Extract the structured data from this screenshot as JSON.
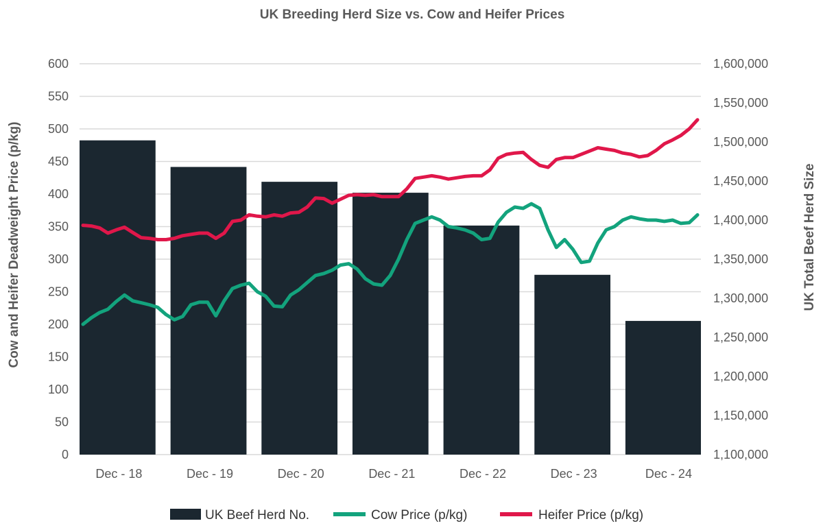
{
  "chart_data": {
    "type": "bar+line",
    "title": "UK Breeding Herd Size vs. Cow and Heifer Prices",
    "y_left_label": "Cow and Heifer Deadweight Price (p/kg)",
    "y_right_label": "UK Total Beef Herd Size",
    "y_left_range": [
      0,
      600
    ],
    "y_left_ticks": [
      "0",
      "50",
      "100",
      "150",
      "200",
      "250",
      "300",
      "350",
      "400",
      "450",
      "500",
      "550",
      "600"
    ],
    "y_right_range": [
      1100000,
      1600000
    ],
    "y_right_ticks": [
      "1,100,000",
      "1,150,000",
      "1,200,000",
      "1,250,000",
      "1,300,000",
      "1,350,000",
      "1,400,000",
      "1,450,000",
      "1,500,000",
      "1,550,000",
      "1,600,000"
    ],
    "x_labels": [
      "Dec - 18",
      "Dec - 19",
      "Dec - 20",
      "Dec - 21",
      "Dec - 22",
      "Dec - 23",
      "Dec - 24"
    ],
    "grid": true,
    "legend_position": "bottom",
    "bars": {
      "name": "UK Beef Herd No.",
      "color": "#1b2730",
      "axis": "right",
      "categories": [
        "Dec - 18",
        "Dec - 19",
        "Dec - 20",
        "Dec - 21",
        "Dec - 22",
        "Dec - 23",
        "Dec - 24"
      ],
      "values": [
        1502000,
        1468000,
        1449000,
        1435000,
        1393000,
        1330000,
        1271000
      ]
    },
    "series": [
      {
        "name": "Cow Price (p/kg)",
        "color": "#13a37d",
        "axis": "left",
        "values": [
          200,
          210,
          218,
          223,
          235,
          245,
          236,
          233,
          230,
          226,
          215,
          207,
          212,
          230,
          234,
          234,
          213,
          236,
          255,
          260,
          263,
          250,
          243,
          228,
          227,
          245,
          253,
          264,
          275,
          278,
          283,
          291,
          293,
          285,
          270,
          262,
          260,
          275,
          300,
          330,
          355,
          360,
          365,
          360,
          350,
          348,
          345,
          340,
          330,
          332,
          357,
          372,
          380,
          378,
          385,
          378,
          345,
          318,
          330,
          315,
          295,
          297,
          325,
          345,
          350,
          360,
          365,
          362,
          360,
          360,
          358,
          360,
          355,
          356,
          368
        ]
      },
      {
        "name": "Heifer Price (p/kg)",
        "color": "#e0174a",
        "axis": "left",
        "values": [
          352,
          351,
          348,
          340,
          345,
          349,
          341,
          333,
          332,
          330,
          330,
          332,
          336,
          338,
          340,
          340,
          332,
          340,
          358,
          360,
          368,
          366,
          365,
          368,
          366,
          371,
          372,
          380,
          394,
          393,
          386,
          392,
          398,
          399,
          398,
          399,
          396,
          396,
          396,
          408,
          424,
          426,
          428,
          426,
          423,
          425,
          427,
          428,
          428,
          437,
          455,
          461,
          463,
          464,
          453,
          444,
          441,
          453,
          456,
          456,
          461,
          466,
          471,
          469,
          467,
          463,
          461,
          457,
          459,
          467,
          477,
          483,
          490,
          500,
          514
        ]
      }
    ],
    "legend": [
      "UK Beef Herd No.",
      "Cow Price (p/kg)",
      "Heifer Price (p/kg)"
    ]
  }
}
